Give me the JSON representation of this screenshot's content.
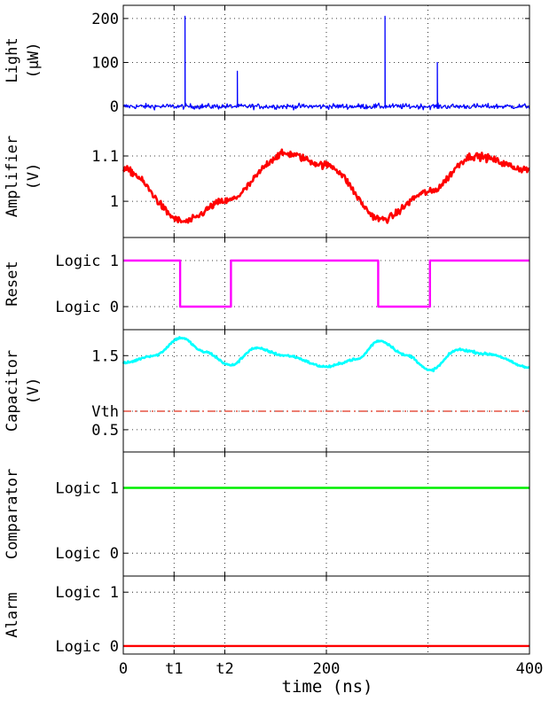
{
  "chart_data": {
    "type": "line",
    "xlabel": "time (ns)",
    "xlim": [
      0,
      400
    ],
    "xticks": [
      {
        "value": 0,
        "label": "0"
      },
      {
        "value": 50,
        "label": "t1"
      },
      {
        "value": 100,
        "label": "t2"
      },
      {
        "value": 200,
        "label": "200"
      },
      {
        "value": 400,
        "label": "400"
      }
    ],
    "xgrid": [
      50,
      100,
      200,
      300
    ],
    "grid": true,
    "panels": [
      {
        "ylabel": [
          "Light",
          "(μW)"
        ],
        "ylim": [
          -20,
          230
        ],
        "yticks": [
          {
            "value": 0,
            "label": "0"
          },
          {
            "value": 100,
            "label": "100"
          },
          {
            "value": 200,
            "label": "200"
          }
        ],
        "series": [
          {
            "color": "#0000ff",
            "base": 0,
            "noise": 6,
            "points": [],
            "spikes": [
              {
                "x": 61,
                "y": 205
              },
              {
                "x": 112,
                "y": 80
              },
              {
                "x": 258,
                "y": 205
              },
              {
                "x": 309,
                "y": 100
              }
            ]
          }
        ]
      },
      {
        "ylabel": [
          "Amplifier",
          "(V)"
        ],
        "ylim": [
          0.92,
          1.19
        ],
        "yticks": [
          {
            "value": 1,
            "label": "1"
          },
          {
            "value": 1.1,
            "label": "1.1"
          }
        ],
        "series": [
          {
            "color": "#ff0000",
            "noise": 0.008,
            "points": [
              [
                0,
                1.07
              ],
              [
                60,
                0.955
              ],
              [
                100,
                1.0
              ],
              [
                160,
                1.105
              ],
              [
                200,
                1.08
              ],
              [
                255,
                0.96
              ],
              [
                300,
                1.02
              ],
              [
                345,
                1.1
              ],
              [
                400,
                1.07
              ]
            ]
          }
        ]
      },
      {
        "ylabel": [
          "Reset"
        ],
        "ylim": [
          -0.5,
          1.5
        ],
        "yticks": [
          {
            "value": 0,
            "label": "Logic 0"
          },
          {
            "value": 1,
            "label": "Logic 1"
          }
        ],
        "series": [
          {
            "color": "#ff00ff",
            "step": true,
            "points": [
              [
                0,
                1
              ],
              [
                56,
                1
              ],
              [
                56,
                0
              ],
              [
                106,
                0
              ],
              [
                106,
                1
              ],
              [
                251,
                1
              ],
              [
                251,
                0
              ],
              [
                302,
                0
              ],
              [
                302,
                1
              ],
              [
                400,
                1
              ]
            ]
          }
        ]
      },
      {
        "ylabel": [
          "Capacitor",
          "(V)"
        ],
        "ylim": [
          0.2,
          1.85
        ],
        "yticks": [
          {
            "value": 0.5,
            "label": "0.5"
          },
          {
            "value": 0.75,
            "label": "Vth"
          },
          {
            "value": 1.5,
            "label": "1.5"
          }
        ],
        "series": [
          {
            "color": "#00ffff",
            "noise": 0.015,
            "points": [
              [
                0,
                1.4
              ],
              [
                30,
                1.5
              ],
              [
                57,
                1.74
              ],
              [
                80,
                1.55
              ],
              [
                106,
                1.37
              ],
              [
                130,
                1.6
              ],
              [
                160,
                1.5
              ],
              [
                200,
                1.35
              ],
              [
                230,
                1.45
              ],
              [
                252,
                1.7
              ],
              [
                280,
                1.5
              ],
              [
                302,
                1.3
              ],
              [
                330,
                1.58
              ],
              [
                360,
                1.52
              ],
              [
                400,
                1.34
              ]
            ]
          },
          {
            "color": "#e0301e",
            "dash": "9 4 2 4",
            "noise": 0,
            "points": [
              [
                0,
                0.75
              ],
              [
                400,
                0.75
              ]
            ]
          }
        ]
      },
      {
        "ylabel": [
          "Comparator"
        ],
        "ylim": [
          -0.35,
          1.55
        ],
        "yticks": [
          {
            "value": 0,
            "label": "Logic 0"
          },
          {
            "value": 1,
            "label": "Logic 1"
          }
        ],
        "series": [
          {
            "color": "#00ee00",
            "noise": 0,
            "points": [
              [
                0,
                1
              ],
              [
                400,
                1
              ]
            ]
          }
        ]
      },
      {
        "ylabel": [
          "Alarm"
        ],
        "ylim": [
          -0.15,
          1.3
        ],
        "yticks": [
          {
            "value": 0,
            "label": "Logic 0"
          },
          {
            "value": 1,
            "label": "Logic 1"
          }
        ],
        "series": [
          {
            "color": "#ff0000",
            "noise": 0,
            "points": [
              [
                0,
                0
              ],
              [
                400,
                0
              ]
            ]
          }
        ]
      }
    ]
  }
}
